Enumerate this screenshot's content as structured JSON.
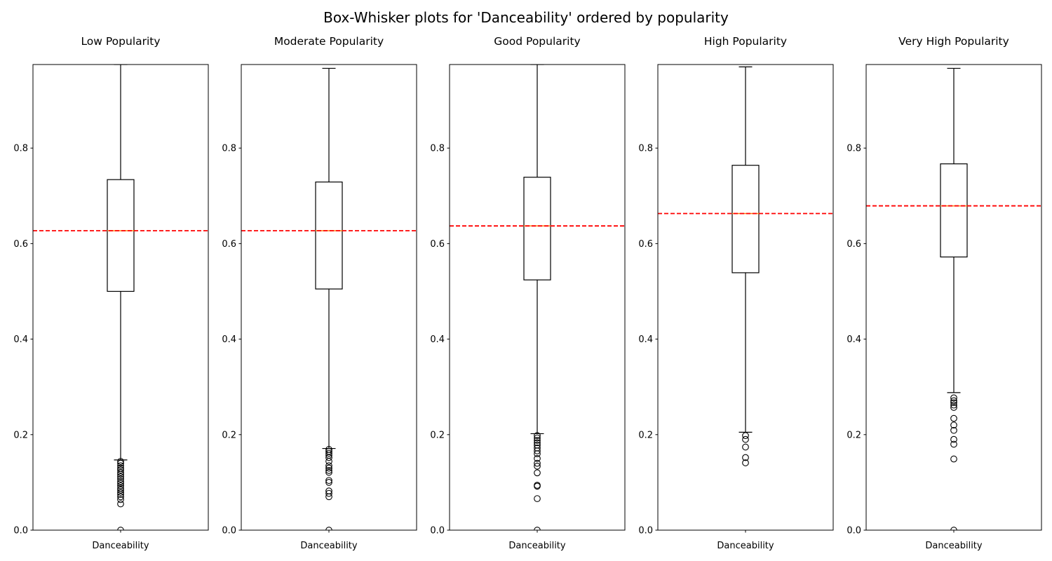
{
  "chart_data": {
    "type": "box",
    "title": "Box-Whisker plots for 'Danceability' ordered by popularity",
    "ylim": [
      0,
      0.975
    ],
    "y_ticks": [
      0.0,
      0.2,
      0.4,
      0.6,
      0.8
    ],
    "y_tick_labels": [
      "0.0",
      "0.2",
      "0.4",
      "0.6",
      "0.8"
    ],
    "grid": false,
    "colors": {
      "box": "#000000",
      "median": "#ff7f0e",
      "mean_line": "#ff0000",
      "flier": "#000000"
    },
    "subplots": [
      {
        "title": "Low Popularity",
        "xlabel": "Danceability",
        "q1": 0.5,
        "median": 0.627,
        "q3": 0.734,
        "whisker_low": 0.147,
        "whisker_high": 0.975,
        "mean": 0.627,
        "fliers": [
          0.0,
          0.055,
          0.064,
          0.07,
          0.075,
          0.079,
          0.084,
          0.088,
          0.093,
          0.098,
          0.102,
          0.107,
          0.112,
          0.117,
          0.121,
          0.126,
          0.13,
          0.135,
          0.14,
          0.144
        ]
      },
      {
        "title": "Moderate Popularity",
        "xlabel": "Danceability",
        "q1": 0.505,
        "median": 0.627,
        "q3": 0.729,
        "whisker_low": 0.171,
        "whisker_high": 0.967,
        "mean": 0.627,
        "fliers": [
          0.0,
          0.07,
          0.077,
          0.082,
          0.1,
          0.104,
          0.121,
          0.125,
          0.13,
          0.135,
          0.144,
          0.152,
          0.157,
          0.161,
          0.165,
          0.169
        ]
      },
      {
        "title": "Good Popularity",
        "xlabel": "Danceability",
        "q1": 0.524,
        "median": 0.637,
        "q3": 0.739,
        "whisker_low": 0.202,
        "whisker_high": 0.975,
        "mean": 0.637,
        "fliers": [
          0.0,
          0.066,
          0.092,
          0.094,
          0.12,
          0.134,
          0.14,
          0.15,
          0.16,
          0.166,
          0.172,
          0.178,
          0.183,
          0.188,
          0.193,
          0.198
        ]
      },
      {
        "title": "High Popularity",
        "xlabel": "Danceability",
        "q1": 0.539,
        "median": 0.663,
        "q3": 0.764,
        "whisker_low": 0.205,
        "whisker_high": 0.97,
        "mean": 0.663,
        "fliers": [
          0.141,
          0.152,
          0.174,
          0.19,
          0.198
        ]
      },
      {
        "title": "Very High Popularity",
        "xlabel": "Danceability",
        "q1": 0.572,
        "median": 0.679,
        "q3": 0.767,
        "whisker_low": 0.288,
        "whisker_high": 0.967,
        "mean": 0.679,
        "fliers": [
          0.0,
          0.149,
          0.18,
          0.19,
          0.209,
          0.22,
          0.234,
          0.257,
          0.262,
          0.267,
          0.271,
          0.277
        ]
      }
    ]
  }
}
